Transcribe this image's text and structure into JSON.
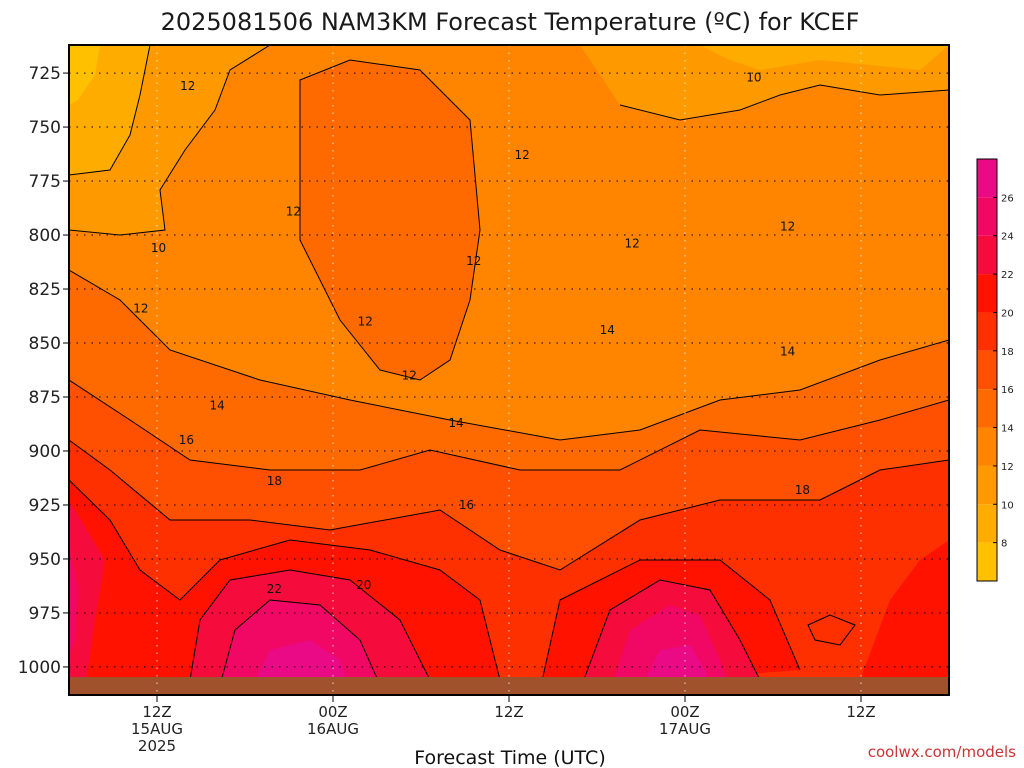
{
  "chart_data": {
    "type": "heatmap",
    "title": "2025081506 NAM3KM Forecast Temperature (ºC) for KCEF",
    "xlabel": "Forecast Time (UTC)",
    "ylabel": "",
    "y_ticks": [
      "725",
      "750",
      "775",
      "800",
      "825",
      "850",
      "875",
      "900",
      "925",
      "950",
      "975",
      "1000"
    ],
    "x_ticks": [
      {
        "hour": 6,
        "lines": [
          "12Z",
          "15AUG",
          "2025"
        ]
      },
      {
        "hour": 18,
        "lines": [
          "00Z",
          "16AUG"
        ]
      },
      {
        "hour": 30,
        "lines": [
          "12Z"
        ]
      },
      {
        "hour": 42,
        "lines": [
          "00Z",
          "17AUG"
        ]
      },
      {
        "hour": 54,
        "lines": [
          "12Z"
        ]
      }
    ],
    "xlim_hours": [
      0,
      60
    ],
    "ylim_mb": [
      1013,
      712
    ],
    "surface_pressure_mb": 1010,
    "grid": true,
    "colorbar": {
      "ticks": [
        "8",
        "10",
        "12",
        "14",
        "16",
        "18",
        "20",
        "22",
        "24",
        "26"
      ],
      "levels": [
        6,
        8,
        10,
        12,
        14,
        16,
        18,
        20,
        22,
        24,
        26,
        28
      ],
      "colors": [
        "#ffc000",
        "#ffac00",
        "#ff9900",
        "#ff8500",
        "#ff6a00",
        "#ff4f00",
        "#ff3000",
        "#ff1200",
        "#f50c3c",
        "#f00864",
        "#eb0a85"
      ]
    },
    "contour_labels": [
      {
        "text": "12",
        "hour": 8.1,
        "mb": 731
      },
      {
        "text": "10",
        "hour": 6.1,
        "mb": 806
      },
      {
        "text": "12",
        "hour": 4.9,
        "mb": 834
      },
      {
        "text": "12",
        "hour": 15.3,
        "mb": 789
      },
      {
        "text": "12",
        "hour": 20.2,
        "mb": 840
      },
      {
        "text": "12",
        "hour": 23.2,
        "mb": 865
      },
      {
        "text": "12",
        "hour": 27.6,
        "mb": 812
      },
      {
        "text": "12",
        "hour": 30.9,
        "mb": 763
      },
      {
        "text": "12",
        "hour": 38.4,
        "mb": 804
      },
      {
        "text": "10",
        "hour": 46.7,
        "mb": 727
      },
      {
        "text": "12",
        "hour": 49.0,
        "mb": 796
      },
      {
        "text": "14",
        "hour": 10.1,
        "mb": 879
      },
      {
        "text": "14",
        "hour": 26.4,
        "mb": 887
      },
      {
        "text": "14",
        "hour": 36.7,
        "mb": 844
      },
      {
        "text": "14",
        "hour": 49.0,
        "mb": 854
      },
      {
        "text": "16",
        "hour": 8.0,
        "mb": 895
      },
      {
        "text": "16",
        "hour": 27.1,
        "mb": 925
      },
      {
        "text": "18",
        "hour": 14.0,
        "mb": 914
      },
      {
        "text": "18",
        "hour": 50.0,
        "mb": 918
      },
      {
        "text": "20",
        "hour": 20.1,
        "mb": 962
      },
      {
        "text": "22",
        "hour": 14.0,
        "mb": 964
      }
    ],
    "credit": "coolwx.com/models"
  }
}
